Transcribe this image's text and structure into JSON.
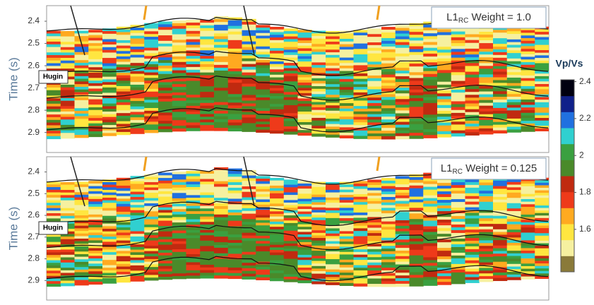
{
  "panels": [
    {
      "annotation": {
        "base": "L1",
        "sub": "RC",
        "rest": " Weight = 1.0"
      },
      "ylabel": "Time  (s)",
      "marker": "Hugin",
      "yticks": [
        2.4,
        2.5,
        2.6,
        2.7,
        2.8,
        2.9
      ],
      "ylim": [
        2.33,
        2.99
      ]
    },
    {
      "annotation": {
        "base": "L1",
        "sub": "RC",
        "rest": " Weight = 0.125"
      },
      "ylabel": "Time  (s)",
      "marker": "Hugin",
      "yticks": [
        2.4,
        2.5,
        2.6,
        2.7,
        2.8,
        2.9
      ],
      "ylim": [
        2.33,
        2.99
      ]
    }
  ],
  "colorbar": {
    "title": "Vp/Vs",
    "ticks": [
      2.4,
      2.2,
      2.0,
      1.8,
      1.6
    ],
    "lim": [
      1.37,
      2.41
    ],
    "colormap": [
      "#8a7a3a",
      "#f6f0a0",
      "#ffe640",
      "#ffaa20",
      "#ee3a1a",
      "#c02a10",
      "#4a8a2a",
      "#3aa040",
      "#30d0d0",
      "#2070e0",
      "#10208a",
      "#000010"
    ]
  }
}
